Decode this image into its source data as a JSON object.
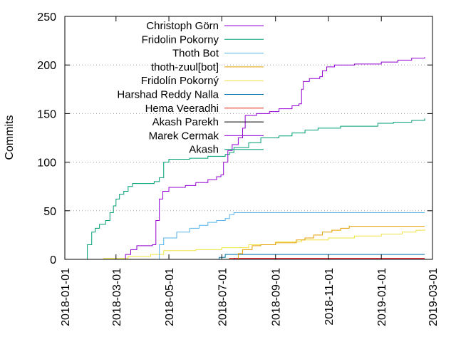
{
  "chart_data": {
    "type": "line",
    "title": "",
    "xlabel": "",
    "ylabel": "Commits",
    "xlim": [
      "2018-01-01",
      "2019-03-01"
    ],
    "ylim": [
      0,
      250
    ],
    "x_ticks": [
      "2018-01-01",
      "2018-03-01",
      "2018-05-01",
      "2018-07-01",
      "2018-09-01",
      "2018-11-01",
      "2019-01-01",
      "2019-03-01"
    ],
    "y_ticks": [
      0,
      50,
      100,
      150,
      200,
      250
    ],
    "grid": "horizontal dotted",
    "legend_position": "top-left",
    "series": [
      {
        "name": "Christoph Görn",
        "color": "#9400d3",
        "points": [
          [
            "2018-03-05",
            0
          ],
          [
            "2018-03-12",
            5
          ],
          [
            "2018-03-18",
            10
          ],
          [
            "2018-03-25",
            14
          ],
          [
            "2018-04-12",
            15
          ],
          [
            "2018-04-16",
            40
          ],
          [
            "2018-04-20",
            62
          ],
          [
            "2018-04-24",
            70
          ],
          [
            "2018-05-01",
            74
          ],
          [
            "2018-05-20",
            76
          ],
          [
            "2018-06-01",
            79
          ],
          [
            "2018-06-15",
            82
          ],
          [
            "2018-06-25",
            85
          ],
          [
            "2018-06-30",
            87
          ],
          [
            "2018-07-03",
            100
          ],
          [
            "2018-07-08",
            112
          ],
          [
            "2018-07-13",
            118
          ],
          [
            "2018-07-20",
            125
          ],
          [
            "2018-07-25",
            135
          ],
          [
            "2018-07-28",
            148
          ],
          [
            "2018-08-10",
            150
          ],
          [
            "2018-08-25",
            152
          ],
          [
            "2018-09-05",
            155
          ],
          [
            "2018-09-20",
            158
          ],
          [
            "2018-09-28",
            160
          ],
          [
            "2018-10-01",
            175
          ],
          [
            "2018-10-03",
            183
          ],
          [
            "2018-10-10",
            186
          ],
          [
            "2018-10-22",
            188
          ],
          [
            "2018-10-25",
            194
          ],
          [
            "2018-10-30",
            198
          ],
          [
            "2018-11-08",
            200
          ],
          [
            "2018-12-01",
            201
          ],
          [
            "2019-01-01",
            203
          ],
          [
            "2019-01-20",
            205
          ],
          [
            "2019-02-05",
            207
          ],
          [
            "2019-02-20",
            208
          ]
        ]
      },
      {
        "name": "Fridolin Pokorny",
        "color": "#009e73",
        "points": [
          [
            "2018-01-25",
            0
          ],
          [
            "2018-01-27",
            15
          ],
          [
            "2018-02-01",
            28
          ],
          [
            "2018-02-05",
            32
          ],
          [
            "2018-02-10",
            36
          ],
          [
            "2018-02-17",
            40
          ],
          [
            "2018-02-22",
            48
          ],
          [
            "2018-02-26",
            55
          ],
          [
            "2018-03-01",
            62
          ],
          [
            "2018-03-05",
            67
          ],
          [
            "2018-03-10",
            70
          ],
          [
            "2018-03-15",
            75
          ],
          [
            "2018-03-20",
            78
          ],
          [
            "2018-04-10",
            78
          ],
          [
            "2018-04-14",
            80
          ],
          [
            "2018-04-20",
            84
          ],
          [
            "2018-04-25",
            100
          ],
          [
            "2018-05-01",
            103
          ],
          [
            "2018-05-25",
            104
          ],
          [
            "2018-06-15",
            106
          ],
          [
            "2018-07-05",
            108
          ],
          [
            "2018-07-10",
            110
          ],
          [
            "2018-07-15",
            115
          ],
          [
            "2018-08-01",
            120
          ],
          [
            "2018-08-15",
            125
          ],
          [
            "2018-09-05",
            127
          ],
          [
            "2018-09-20",
            130
          ],
          [
            "2018-10-05",
            133
          ],
          [
            "2018-10-20",
            135
          ],
          [
            "2018-11-15",
            137
          ],
          [
            "2018-12-15",
            137
          ],
          [
            "2018-12-28",
            140
          ],
          [
            "2019-01-15",
            141
          ],
          [
            "2019-02-05",
            143
          ],
          [
            "2019-02-20",
            145
          ]
        ]
      },
      {
        "name": "Thoth Bot",
        "color": "#56b4e9",
        "points": [
          [
            "2018-04-05",
            0
          ],
          [
            "2018-04-20",
            15
          ],
          [
            "2018-04-25",
            22
          ],
          [
            "2018-05-10",
            28
          ],
          [
            "2018-05-25",
            32
          ],
          [
            "2018-06-05",
            35
          ],
          [
            "2018-06-15",
            38
          ],
          [
            "2018-06-25",
            40
          ],
          [
            "2018-07-05",
            42
          ],
          [
            "2018-07-10",
            46
          ],
          [
            "2018-07-15",
            48
          ],
          [
            "2019-02-20",
            48
          ]
        ]
      },
      {
        "name": "thoth-zuul[bot]",
        "color": "#e69f00",
        "points": [
          [
            "2018-07-15",
            0
          ],
          [
            "2018-07-20",
            6
          ],
          [
            "2018-07-25",
            10
          ],
          [
            "2018-08-05",
            14
          ],
          [
            "2018-08-15",
            15
          ],
          [
            "2018-09-01",
            17
          ],
          [
            "2018-09-25",
            20
          ],
          [
            "2018-10-05",
            22
          ],
          [
            "2018-10-15",
            25
          ],
          [
            "2018-10-25",
            28
          ],
          [
            "2018-11-05",
            30
          ],
          [
            "2018-11-15",
            32
          ],
          [
            "2018-11-25",
            34
          ],
          [
            "2019-02-20",
            34
          ]
        ]
      },
      {
        "name": "Fridolín Pokorný",
        "color": "#f0e442",
        "points": [
          [
            "2018-01-25",
            0
          ],
          [
            "2018-02-15",
            1
          ],
          [
            "2018-03-15",
            3
          ],
          [
            "2018-04-10",
            5
          ],
          [
            "2018-04-25",
            9
          ],
          [
            "2018-06-01",
            10
          ],
          [
            "2018-07-01",
            12
          ],
          [
            "2018-08-01",
            15
          ],
          [
            "2018-09-01",
            18
          ],
          [
            "2018-10-01",
            20
          ],
          [
            "2018-11-01",
            22
          ],
          [
            "2018-12-01",
            24
          ],
          [
            "2019-01-01",
            26
          ],
          [
            "2019-01-25",
            28
          ],
          [
            "2019-02-10",
            30
          ],
          [
            "2019-02-20",
            31
          ]
        ]
      },
      {
        "name": "Harshad Reddy Nalla",
        "color": "#0072b2",
        "points": [
          [
            "2018-06-20",
            0
          ],
          [
            "2018-06-28",
            2
          ],
          [
            "2018-07-05",
            5
          ],
          [
            "2019-02-20",
            5
          ]
        ]
      },
      {
        "name": "Hema Veeradhi",
        "color": "#e51e10",
        "points": [
          [
            "2018-07-01",
            0
          ],
          [
            "2018-07-10",
            1
          ],
          [
            "2019-02-20",
            1
          ]
        ]
      },
      {
        "name": "Akash Parekh",
        "color": "#000000",
        "points": [
          [
            "2018-06-20",
            0
          ],
          [
            "2019-02-20",
            0
          ]
        ]
      },
      {
        "name": "Marek Cermak",
        "color": "#9400d3",
        "points": [
          [
            "2018-07-01",
            0
          ],
          [
            "2018-07-15",
            1
          ],
          [
            "2019-02-20",
            1
          ]
        ]
      },
      {
        "name": "Akash",
        "color": "#009e73",
        "points": [
          [
            "2018-07-20",
            0
          ],
          [
            "2019-02-20",
            0
          ]
        ]
      }
    ]
  }
}
